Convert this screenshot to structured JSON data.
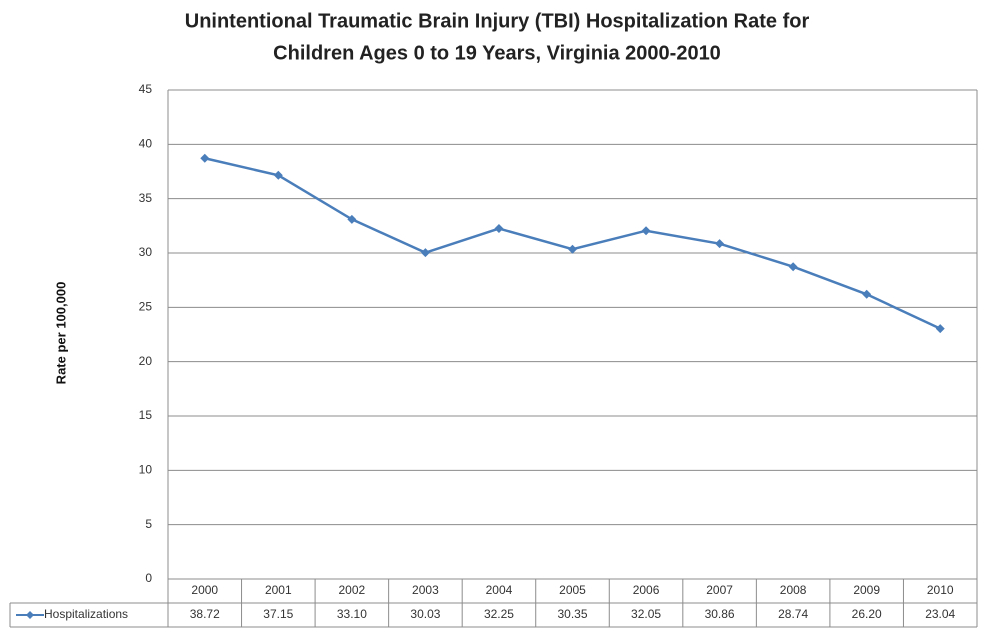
{
  "chart_data": {
    "type": "line",
    "title": [
      "Unintentional Traumatic Brain Injury (TBI) Hospitalization Rate for",
      "Children Ages 0 to 19 Years, Virginia 2000-2010"
    ],
    "y_label": "Rate per 100,000",
    "categories": [
      "2000",
      "2001",
      "2002",
      "2003",
      "2004",
      "2005",
      "2006",
      "2007",
      "2008",
      "2009",
      "2010"
    ],
    "series": [
      {
        "name": "Hospitalizations",
        "color": "#4a7ebb",
        "values": [
          38.72,
          37.15,
          33.1,
          30.03,
          32.25,
          30.35,
          32.05,
          30.86,
          28.74,
          26.2,
          23.04
        ],
        "value_labels": [
          "38.72",
          "37.15",
          "33.10",
          "30.03",
          "32.25",
          "30.35",
          "32.05",
          "30.86",
          "28.74",
          "26.20",
          "23.04"
        ]
      }
    ],
    "ylim": [
      0,
      45
    ],
    "yticks": [
      0,
      5,
      10,
      15,
      20,
      25,
      30,
      35,
      40,
      45
    ],
    "grid": true,
    "data_table": true
  }
}
